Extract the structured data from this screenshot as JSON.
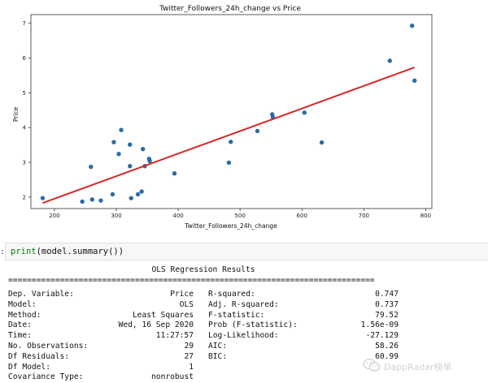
{
  "chart_data": {
    "type": "scatter",
    "title": "Twitter_Followers_24h_change vs Price",
    "xlabel": "Twitter_Followers_24h_change",
    "ylabel": "Price",
    "xlim": [
      162,
      810
    ],
    "ylim": [
      1.67,
      7.25
    ],
    "xticks": [
      200,
      300,
      400,
      500,
      600,
      700,
      800
    ],
    "yticks": [
      2,
      3,
      4,
      5,
      6,
      7
    ],
    "grid": false,
    "points": [
      {
        "x": 181,
        "y": 1.97
      },
      {
        "x": 245,
        "y": 1.87
      },
      {
        "x": 259,
        "y": 2.87
      },
      {
        "x": 261,
        "y": 1.93
      },
      {
        "x": 275,
        "y": 1.9
      },
      {
        "x": 294,
        "y": 2.08
      },
      {
        "x": 296,
        "y": 3.58
      },
      {
        "x": 304,
        "y": 3.24
      },
      {
        "x": 308,
        "y": 3.93
      },
      {
        "x": 322,
        "y": 3.51
      },
      {
        "x": 322,
        "y": 2.89
      },
      {
        "x": 324,
        "y": 1.97
      },
      {
        "x": 335,
        "y": 2.08
      },
      {
        "x": 341,
        "y": 2.16
      },
      {
        "x": 343,
        "y": 3.38
      },
      {
        "x": 346,
        "y": 2.89
      },
      {
        "x": 353,
        "y": 3.1
      },
      {
        "x": 354,
        "y": 3.04
      },
      {
        "x": 394,
        "y": 2.68
      },
      {
        "x": 482,
        "y": 2.99
      },
      {
        "x": 485,
        "y": 3.59
      },
      {
        "x": 528,
        "y": 3.9
      },
      {
        "x": 552,
        "y": 4.38
      },
      {
        "x": 553,
        "y": 4.3
      },
      {
        "x": 604,
        "y": 4.43
      },
      {
        "x": 632,
        "y": 3.57
      },
      {
        "x": 742,
        "y": 5.92
      },
      {
        "x": 778,
        "y": 6.93
      },
      {
        "x": 782,
        "y": 5.35
      }
    ],
    "fit_line": {
      "x": [
        181,
        782
      ],
      "y": [
        1.83,
        5.73
      ]
    },
    "colors": {
      "points": "#2b6ca3",
      "fit": "#d62728"
    }
  },
  "code_cell": {
    "prompt": ":",
    "keyword": "print",
    "rest": "(model.summary())"
  },
  "summary": {
    "title": "OLS Regression Results",
    "separator": "==============================================================================",
    "rows": [
      {
        "label": "Dep. Variable:",
        "value": "Price",
        "label2": "R-squared:",
        "value2": "0.747"
      },
      {
        "label": "Model:",
        "value": "OLS",
        "label2": "Adj. R-squared:",
        "value2": "0.737"
      },
      {
        "label": "Method:",
        "value": "Least Squares",
        "label2": "F-statistic:",
        "value2": "79.52"
      },
      {
        "label": "Date:",
        "value": "Wed, 16 Sep 2020",
        "label2": "Prob (F-statistic):",
        "value2": "1.56e-09"
      },
      {
        "label": "Time:",
        "value": "11:27:57",
        "label2": "Log-Likelihood:",
        "value2": "-27.129"
      },
      {
        "label": "No. Observations:",
        "value": "29",
        "label2": "AIC:",
        "value2": "58.26"
      },
      {
        "label": "Df Residuals:",
        "value": "27",
        "label2": "BIC:",
        "value2": "60.99"
      },
      {
        "label": "Df Model:",
        "value": "1",
        "label2": "",
        "value2": ""
      },
      {
        "label": "Covariance Type:",
        "value": "nonrobust",
        "label2": "",
        "value2": ""
      }
    ]
  },
  "watermark": {
    "text": "DappRadar榜单",
    "icon": "wechat-icon"
  }
}
